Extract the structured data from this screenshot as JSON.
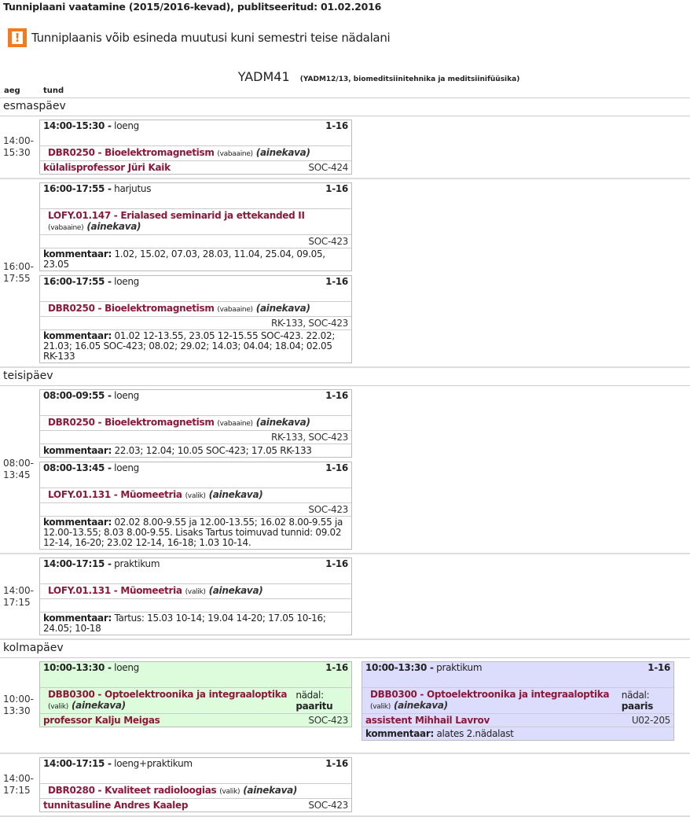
{
  "page_title": "Tunniplaani vaatamine (2015/2016-kevad), publitseeritud: 01.02.2016",
  "warning": {
    "icon": "exclamation-icon",
    "text": "Tunniplaanis võib esineda muutusi kuni semestri teise nädalani",
    "color": "#f47a20"
  },
  "group": {
    "name": "YADM41",
    "subtitle": "(YADM12/13, biomeditsiinitehnika ja meditsiinifüüsika)"
  },
  "columns": {
    "time": "aeg",
    "lesson": "tund"
  },
  "colors": {
    "course": "#8b1a3a",
    "green": "#dcfcdc",
    "blue": "#dcdcfc"
  },
  "days": [
    {
      "name": "esmaspäev",
      "slots": [
        {
          "time": "14:00-15:30",
          "columns": [
            [
              {
                "time": "14:00-15:30 -",
                "type": "loeng",
                "weeks": "1-16",
                "course": "DBR0250 - Bioelektromagnetism",
                "tag": "(vabaaine)",
                "ainekava": "(ainekava)",
                "lecturer": "külalisprofessor Jüri Kaik",
                "room": "SOC-424"
              }
            ]
          ]
        },
        {
          "time": "16:00-17:55",
          "columns": [
            [
              {
                "time": "16:00-17:55 -",
                "type": "harjutus",
                "weeks": "1-16",
                "course": "LOFY.01.147 - Erialased seminarid ja ettekanded II",
                "tag": "(vabaaine)",
                "ainekava": "(ainekava)",
                "lecturer": "",
                "room": "SOC-423",
                "comment_label": "kommentaar:",
                "comment": "1.02, 15.02, 07.03, 28.03, 11.04, 25.04, 09.05, 23.05"
              },
              {
                "time": "16:00-17:55 -",
                "type": "loeng",
                "weeks": "1-16",
                "course": "DBR0250 - Bioelektromagnetism",
                "tag": "(vabaaine)",
                "ainekava": "(ainekava)",
                "lecturer": "",
                "room": "RK-133,  SOC-423",
                "comment_label": "kommentaar:",
                "comment": "01.02 12-13.55, 23.05 12-15.55 SOC-423. 22.02; 21.03; 16.05 SOC-423; 08.02; 29.02; 14.03; 04.04; 18.04; 02.05 RK-133"
              }
            ]
          ]
        }
      ]
    },
    {
      "name": "teisipäev",
      "slots": [
        {
          "time": "08:00-13:45",
          "columns": [
            [
              {
                "time": "08:00-09:55 -",
                "type": "loeng",
                "weeks": "1-16",
                "course": "DBR0250 - Bioelektromagnetism",
                "tag": "(vabaaine)",
                "ainekava": "(ainekava)",
                "lecturer": "",
                "room": "RK-133,  SOC-423",
                "comment_label": "kommentaar:",
                "comment": "22.03; 12.04; 10.05 SOC-423; 17.05 RK-133"
              },
              {
                "time": "08:00-13:45 -",
                "type": "loeng",
                "weeks": "1-16",
                "course": "LOFY.01.131 - Müomeetria",
                "tag": "(valik)",
                "ainekava": "(ainekava)",
                "lecturer": "",
                "room": "SOC-423",
                "comment_label": "kommentaar:",
                "comment": "02.02 8.00-9.55 ja 12.00-13.55; 16.02 8.00-9.55 ja 12.00-13.55; 8.03 8.00-9.55. Lisaks Tartus toimuvad tunnid: 09.02 12-14, 16-20; 23.02 12-14, 16-18; 1.03 10-14."
              }
            ]
          ]
        },
        {
          "time": "14:00-17:15",
          "columns": [
            [
              {
                "time": "14:00-17:15 -",
                "type": "praktikum",
                "weeks": "1-16",
                "course": "LOFY.01.131 - Müomeetria",
                "tag": "(valik)",
                "ainekava": "(ainekava)",
                "lecturer": "",
                "room": "",
                "comment_label": "kommentaar:",
                "comment": "Tartus: 15.03 10-14; 19.04 14-20; 17.05 10-16; 24.05; 10-18"
              }
            ]
          ]
        }
      ]
    },
    {
      "name": "kolmapäev",
      "slots": [
        {
          "time": "10:00-13:30",
          "columns": [
            [
              {
                "time": "10:00-13:30 -",
                "type": "loeng",
                "weeks": "1-16",
                "course": "DBB0300 - Optoelektroonika ja integraaloptika",
                "tag": "(valik)",
                "ainekava": "(ainekava)",
                "week_label": "nädal:",
                "week_value": "paaritu",
                "lecturer": "professor Kalju Meigas",
                "room": "SOC-423",
                "bg": "green"
              }
            ],
            [
              {
                "time": "10:00-13:30 -",
                "type": "praktikum",
                "weeks": "1-16",
                "course": "DBB0300 - Optoelektroonika ja integraaloptika",
                "tag": "(valik)",
                "ainekava": "(ainekava)",
                "week_label": "nädal:",
                "week_value": "paaris",
                "lecturer": "assistent Mihhail Lavrov",
                "room": "U02-205",
                "comment_label": "kommentaar:",
                "comment": "alates 2.nädalast",
                "bg": "blue"
              }
            ]
          ]
        },
        {
          "time": "14:00-17:15",
          "columns": [
            [
              {
                "time": "14:00-17:15 -",
                "type": "loeng+praktikum",
                "weeks": "1-16",
                "course": "DBR0280 - Kvaliteet radioloogias",
                "tag": "(valik)",
                "ainekava": "(ainekava)",
                "lecturer": "tunnitasuline Andres Kaalep",
                "room": "SOC-423"
              }
            ]
          ]
        }
      ]
    }
  ]
}
